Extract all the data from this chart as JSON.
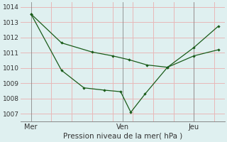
{
  "xlabel": "Pression niveau de la mer( hPa )",
  "background_color": "#dff0f0",
  "grid_color_h": "#e8b8b8",
  "grid_color_v": "#e8b8b8",
  "vline_color": "#c8c8c8",
  "line_color": "#1a5c1a",
  "ylim": [
    1006.5,
    1014.3
  ],
  "xlim": [
    0.0,
    10.0
  ],
  "xtick_positions": [
    0.5,
    5.0,
    8.5
  ],
  "xtick_labels": [
    "Mer",
    "Ven",
    "Jeu"
  ],
  "ytick_values": [
    1007,
    1008,
    1009,
    1010,
    1011,
    1012,
    1013,
    1014
  ],
  "vline_positions": [
    0.5,
    5.0,
    8.5
  ],
  "hgrid_positions": [
    1007,
    1008,
    1009,
    1010,
    1011,
    1012,
    1013,
    1014
  ],
  "vgrid_positions": [
    1.5,
    2.5,
    3.5,
    4.5,
    5.5,
    6.5,
    7.5,
    8.5,
    9.5
  ],
  "line1_x": [
    0.5,
    2.0,
    3.5,
    4.5,
    5.3,
    6.2,
    7.2,
    8.5,
    9.7
  ],
  "line1_y": [
    1013.55,
    1011.65,
    1011.05,
    1010.8,
    1010.55,
    1010.2,
    1010.05,
    1010.8,
    1011.2
  ],
  "line2_x": [
    0.5,
    2.0,
    3.1,
    4.1,
    4.9,
    5.4,
    6.1,
    7.2,
    8.5,
    9.7
  ],
  "line2_y": [
    1013.55,
    1009.85,
    1008.7,
    1008.55,
    1008.45,
    1007.1,
    1008.3,
    1010.05,
    1011.35,
    1012.75
  ],
  "xlabel_fontsize": 7.5,
  "ytick_fontsize": 6.5,
  "xtick_fontsize": 7.0
}
